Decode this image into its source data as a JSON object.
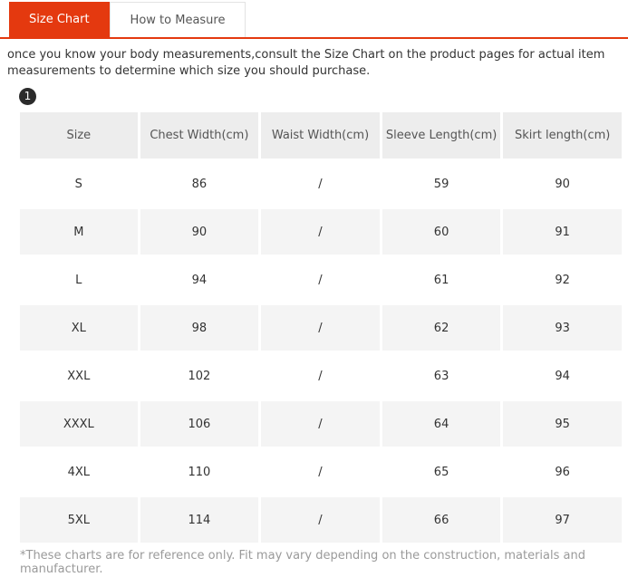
{
  "tabs": [
    {
      "label": "Size Chart",
      "active": true
    },
    {
      "label": "How to Measure",
      "active": false
    }
  ],
  "intro": "once you know your body measurements,consult the Size Chart on the product pages for actual item measurements to determine which size you should purchase.",
  "step_badge": "1",
  "table": {
    "columns": [
      "Size",
      "Chest Width(cm)",
      "Waist Width(cm)",
      "Sleeve Length(cm)",
      "Skirt length(cm)"
    ],
    "rows": [
      [
        "S",
        "86",
        "/",
        "59",
        "90"
      ],
      [
        "M",
        "90",
        "/",
        "60",
        "91"
      ],
      [
        "L",
        "94",
        "/",
        "61",
        "92"
      ],
      [
        "XL",
        "98",
        "/",
        "62",
        "93"
      ],
      [
        "XXL",
        "102",
        "/",
        "63",
        "94"
      ],
      [
        "XXXL",
        "106",
        "/",
        "64",
        "95"
      ],
      [
        "4XL",
        "110",
        "/",
        "65",
        "96"
      ],
      [
        "5XL",
        "114",
        "/",
        "66",
        "97"
      ]
    ]
  },
  "footnote": "*These charts are for reference only. Fit may vary depending on the construction, materials and manufacturer.",
  "colors": {
    "accent": "#e4390f",
    "header_bg": "#ededed",
    "stripe_bg": "#f4f4f4",
    "badge_bg": "#2b2b2b"
  }
}
